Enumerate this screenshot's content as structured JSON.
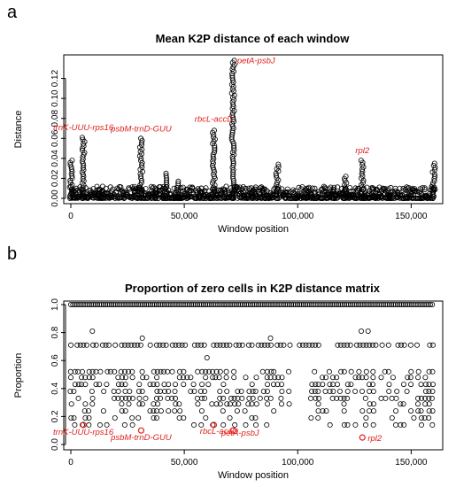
{
  "colors": {
    "point": "#000000",
    "highlight": "#e0201b",
    "axis": "#000000"
  },
  "chart_data": [
    {
      "panel_label": "a",
      "type": "scatter",
      "title": "Mean K2P distance of each window",
      "xlabel": "Window position",
      "ylabel": "Distance",
      "xlim": [
        0,
        160000
      ],
      "ylim": [
        0,
        0.14
      ],
      "x_ticks": [
        0,
        50000,
        100000,
        150000
      ],
      "x_tick_labels": [
        "0",
        "50,000",
        "100,000",
        "150,000"
      ],
      "y_ticks": [
        0,
        0.02,
        0.04,
        0.06,
        0.08,
        0.1,
        0.12
      ],
      "y_tick_labels": [
        "0.00",
        "0.02",
        "0.04",
        "0.06",
        "0.08",
        "0.10",
        "0.12"
      ],
      "grid": false,
      "marker": "open-circle",
      "peaks": [
        {
          "x": 0,
          "y": 0.038
        },
        {
          "x": 5500,
          "y": 0.061
        },
        {
          "x": 13000,
          "y": 0.009
        },
        {
          "x": 31000,
          "y": 0.06
        },
        {
          "x": 37000,
          "y": 0.01
        },
        {
          "x": 42000,
          "y": 0.025
        },
        {
          "x": 47000,
          "y": 0.017
        },
        {
          "x": 57000,
          "y": 0.01
        },
        {
          "x": 63000,
          "y": 0.068
        },
        {
          "x": 71500,
          "y": 0.138
        },
        {
          "x": 80000,
          "y": 0.008
        },
        {
          "x": 91000,
          "y": 0.034
        },
        {
          "x": 104000,
          "y": 0.01
        },
        {
          "x": 116000,
          "y": 0.009
        },
        {
          "x": 121000,
          "y": 0.022
        },
        {
          "x": 128500,
          "y": 0.038
        },
        {
          "x": 140000,
          "y": 0.008
        },
        {
          "x": 160000,
          "y": 0.035
        }
      ],
      "annotations": [
        {
          "text": "trnK-UUU-rps16",
          "x": 5500,
          "y": 0.061
        },
        {
          "text": "psbM-trnD-GUU",
          "x": 31000,
          "y": 0.06
        },
        {
          "text": "rbcL-accD",
          "x": 63000,
          "y": 0.068
        },
        {
          "text": "petA-psbJ",
          "x": 71500,
          "y": 0.138
        },
        {
          "text": "rpl2",
          "x": 128500,
          "y": 0.038
        }
      ]
    },
    {
      "panel_label": "b",
      "type": "scatter",
      "title": "Proportion of zero cells in K2P distance matrix",
      "xlabel": "Window position",
      "ylabel": "Proportion",
      "xlim": [
        0,
        160000
      ],
      "ylim": [
        0,
        1.0
      ],
      "x_ticks": [
        0,
        50000,
        100000,
        150000
      ],
      "x_tick_labels": [
        "0",
        "50,000",
        "100,000",
        "150,000"
      ],
      "y_ticks": [
        0,
        0.2,
        0.4,
        0.6,
        0.8,
        1.0
      ],
      "y_tick_labels": [
        "0.0",
        "0.2",
        "0.4",
        "0.6",
        "0.8",
        "1.0"
      ],
      "grid": false,
      "marker": "open-circle",
      "levels": [
        1.0,
        0.71,
        0.52,
        0.48,
        0.43,
        0.38,
        0.33,
        0.29,
        0.24,
        0.19,
        0.14
      ],
      "highlighted_points": [
        {
          "label": "trnK-UUU-rps16",
          "x": 5500,
          "y": 0.14
        },
        {
          "label": "psbM-trnD-GUU",
          "x": 31000,
          "y": 0.1
        },
        {
          "label": "rbcL-accD",
          "x": 63000,
          "y": 0.14
        },
        {
          "label": "petA-psbJ",
          "x": 71500,
          "y": 0.1
        },
        {
          "label": "rpl2",
          "x": 128500,
          "y": 0.05
        }
      ]
    }
  ]
}
